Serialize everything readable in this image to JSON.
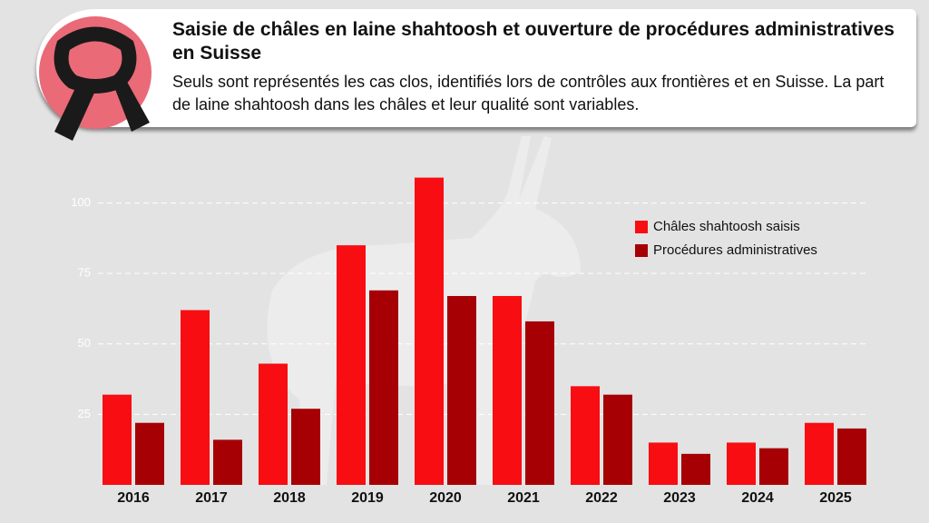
{
  "chart_data": {
    "type": "bar",
    "title": "Saisie de châles en laine shahtoosh et ouverture de procédures administratives en Suisse",
    "subtitle": "Seuls sont représentés les cas clos, identifiés lors de contrôles aux frontières et en Suisse. La part de laine shahtoosh dans les châles et leur qualité sont variables.",
    "categories": [
      "2016",
      "2017",
      "2018",
      "2019",
      "2020",
      "2021",
      "2022",
      "2023",
      "2024",
      "2025"
    ],
    "series": [
      {
        "name": "Châles shahtoosh saisis",
        "color": "#f70d12",
        "values": [
          32,
          62,
          43,
          85,
          109,
          67,
          35,
          15,
          15,
          22
        ]
      },
      {
        "name": "Procédures administratives",
        "color": "#a60005",
        "values": [
          22,
          16,
          27,
          69,
          67,
          58,
          32,
          11,
          13,
          20
        ]
      }
    ],
    "ylim": [
      0,
      115
    ],
    "yticks": [
      25,
      50,
      75,
      100
    ],
    "grid": true
  }
}
